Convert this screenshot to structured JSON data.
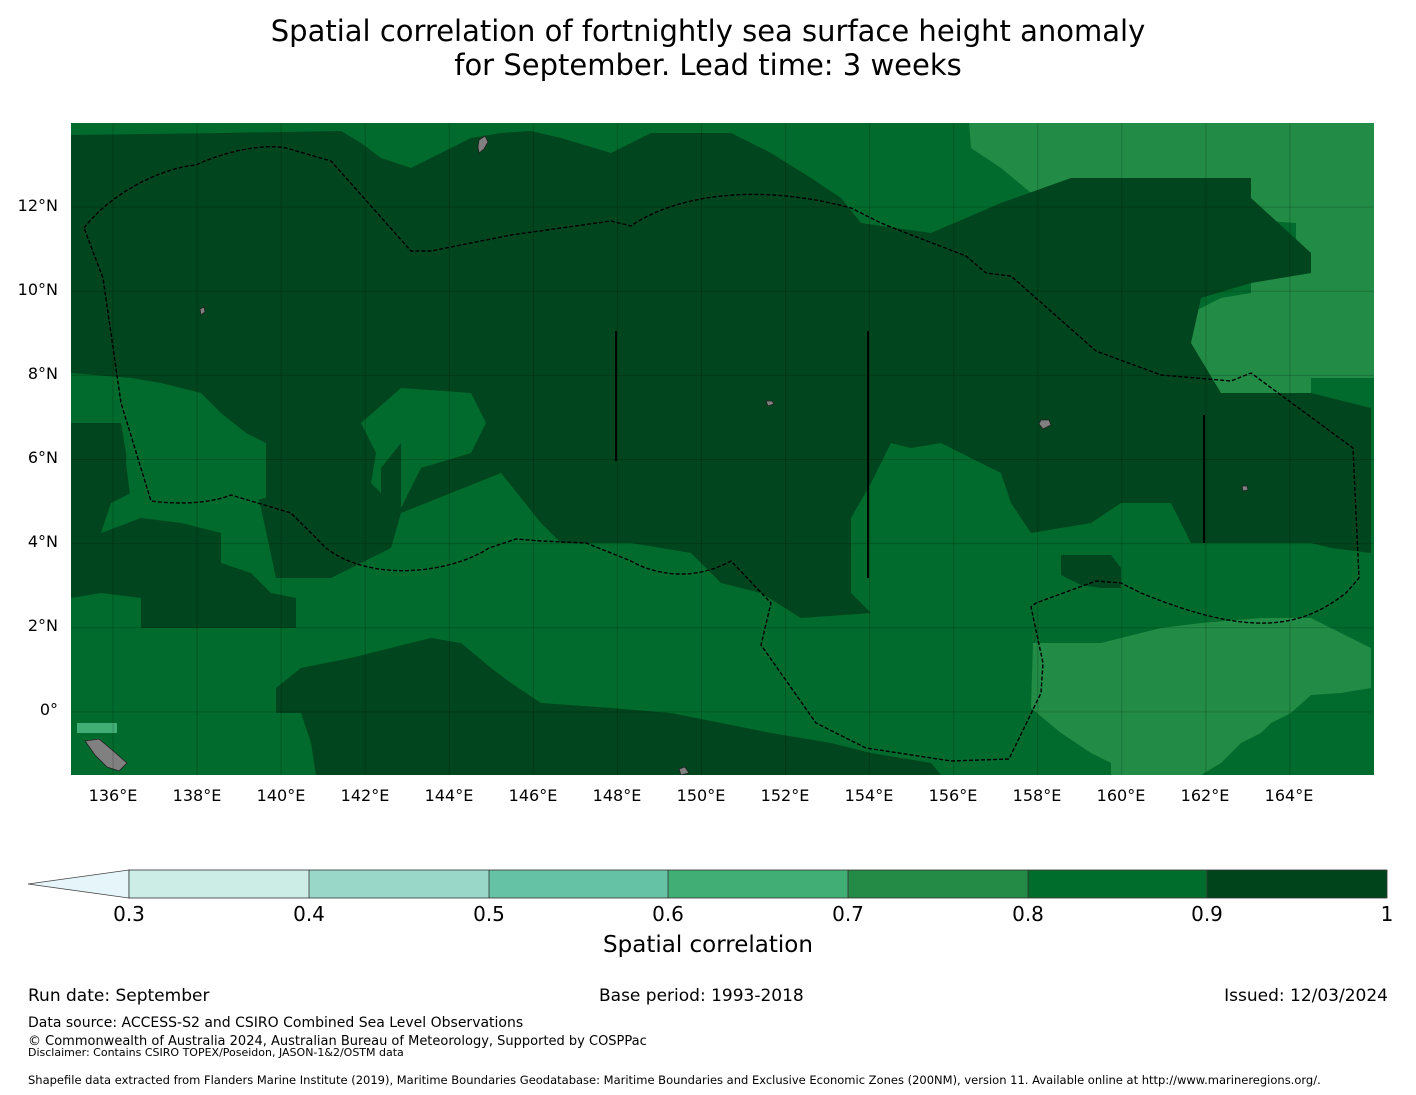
{
  "title": {
    "line1": "Spatial correlation of fortnightly sea surface height anomaly",
    "line2": "for September. Lead time: 3 weeks"
  },
  "map": {
    "lat_labels": [
      "12°N",
      "10°N",
      "8°N",
      "6°N",
      "4°N",
      "2°N",
      "0°"
    ],
    "lon_labels": [
      "136°E",
      "138°E",
      "140°E",
      "142°E",
      "144°E",
      "146°E",
      "148°E",
      "150°E",
      "152°E",
      "154°E",
      "156°E",
      "158°E",
      "160°E",
      "162°E",
      "164°E"
    ],
    "extent": {
      "lon_min": 135,
      "lon_max": 166,
      "lat_min": -1.5,
      "lat_max": 14
    },
    "colors": {
      "c07": "#228b45",
      "c08": "#006b2c",
      "c09": "#00451d",
      "land": "#808080"
    }
  },
  "colorbar": {
    "label": "Spatial correlation",
    "ticks": [
      "0.3",
      "0.4",
      "0.5",
      "0.6",
      "0.7",
      "0.8",
      "0.9",
      "1"
    ],
    "colors": [
      "#e5f5f9",
      "#ccece6",
      "#99d8c9",
      "#66c2a4",
      "#41ae76",
      "#238b45",
      "#006d2c",
      "#00441b"
    ]
  },
  "footer": {
    "run_date": "Run date: September",
    "base_period": "Base period: 1993-2018",
    "issued": "Issued: 12/03/2024",
    "data_source": "Data source: ACCESS-S2 and CSIRO Combined Sea Level Observations",
    "copyright": "© Commonwealth of Australia 2024, Australian Bureau of Meteorology, Supported by COSPPac",
    "disclaimer": "Disclaimer: Contains CSIRO TOPEX/Poseidon, JASON-1&2/OSTM data",
    "shapefile": "Shapefile data extracted from Flanders Marine Institute (2019), Maritime Boundaries Geodatabase: Maritime Boundaries and Exclusive Economic Zones (200NM), version 11. Available online at http://www.marineregions.org/."
  }
}
